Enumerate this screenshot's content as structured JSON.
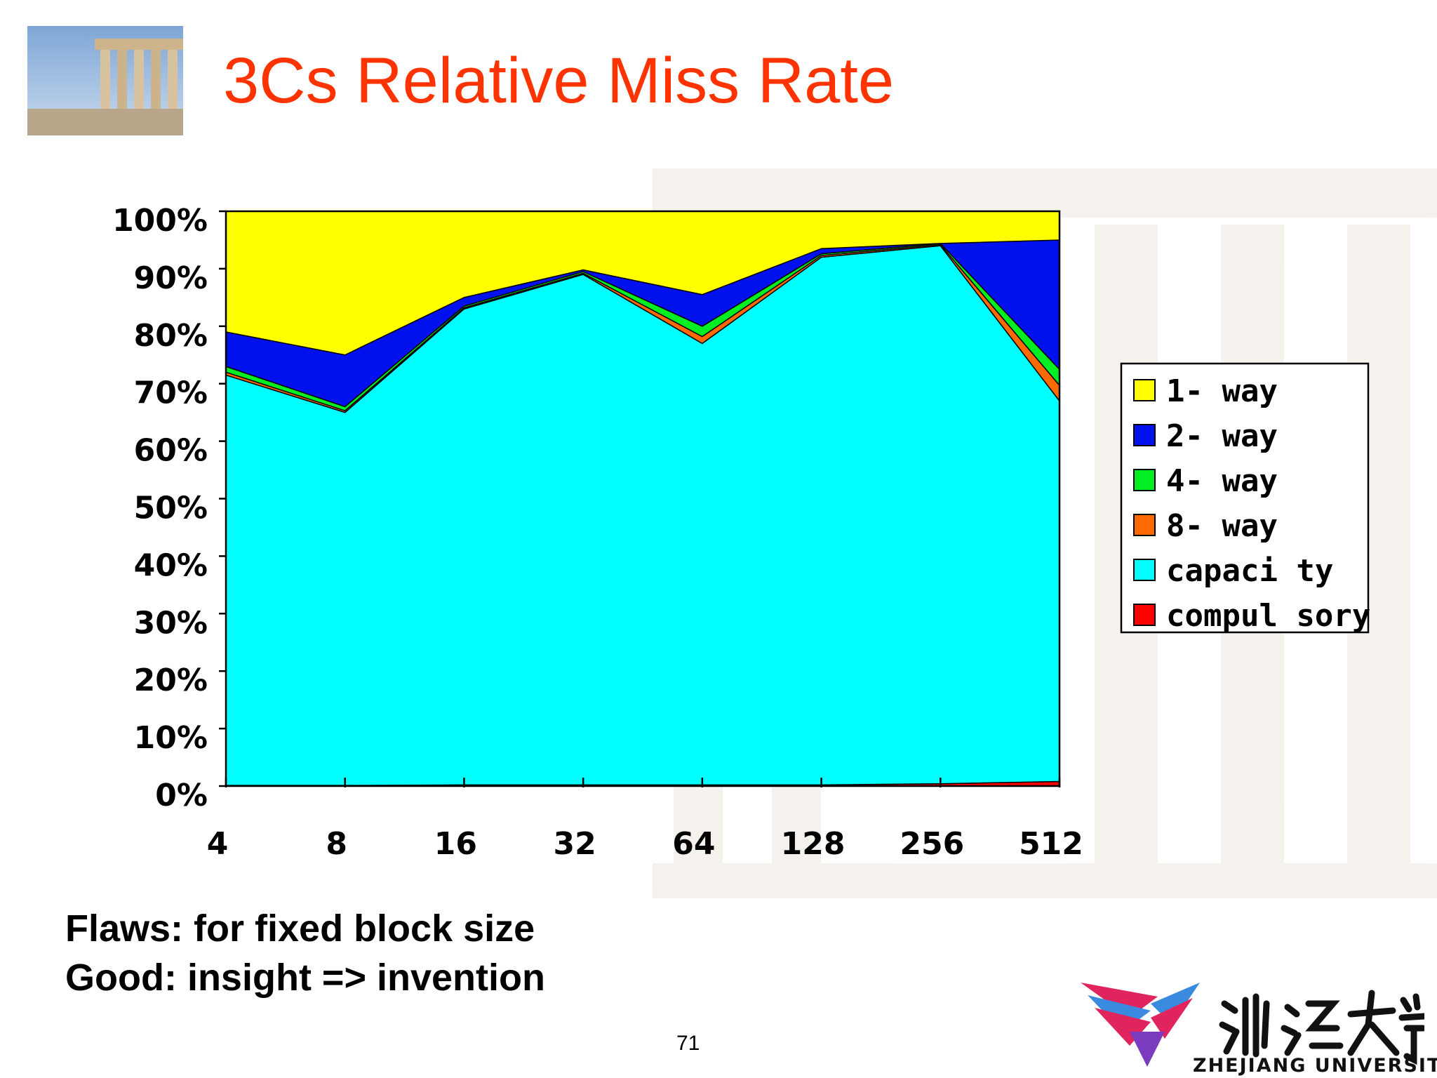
{
  "slide": {
    "title": "3Cs Relative Miss Rate",
    "notes": [
      "Flaws: for fixed block size",
      "Good: insight => invention"
    ],
    "page_number": "71",
    "logo_text": "ZHEJIANG UNIVERSITY"
  },
  "colors": {
    "title": "#ff3300",
    "1-way": "#ffff00",
    "2-way": "#0011ee",
    "4-way": "#00ee22",
    "8-way": "#ff6a00",
    "capacity": "#00ffff",
    "compulsory": "#ff0000"
  },
  "chart_data": {
    "type": "area",
    "stacked": true,
    "normalized": true,
    "title": "",
    "xlabel": "",
    "ylabel": "",
    "categories": [
      "4",
      "8",
      "16",
      "32",
      "64",
      "128",
      "256",
      "512"
    ],
    "ylim": [
      0,
      100
    ],
    "yticks": [
      "0%",
      "10%",
      "20%",
      "30%",
      "40%",
      "50%",
      "60%",
      "70%",
      "80%",
      "90%",
      "100%"
    ],
    "legend": {
      "position": "right"
    },
    "series": [
      {
        "name": "compul sory",
        "values": [
          0.1,
          0.1,
          0.2,
          0.2,
          0.2,
          0.2,
          0.4,
          0.8
        ]
      },
      {
        "name": "capaci ty",
        "values": [
          71.4,
          64.9,
          82.8,
          88.8,
          76.8,
          91.8,
          93.6,
          66.2
        ]
      },
      {
        "name": "8- way",
        "values": [
          0.5,
          0.3,
          0.2,
          0.2,
          1.2,
          0.3,
          0.2,
          2.7
        ]
      },
      {
        "name": "4- way",
        "values": [
          1.0,
          0.7,
          0.3,
          0.3,
          1.8,
          0.3,
          0.2,
          2.8
        ]
      },
      {
        "name": "2- way",
        "values": [
          6.0,
          9.0,
          1.5,
          0.3,
          5.5,
          0.9,
          0.0,
          22.5
        ]
      },
      {
        "name": "1- way",
        "values": [
          21.0,
          25.0,
          15.0,
          10.2,
          14.5,
          6.5,
          5.6,
          5.0
        ]
      }
    ]
  }
}
